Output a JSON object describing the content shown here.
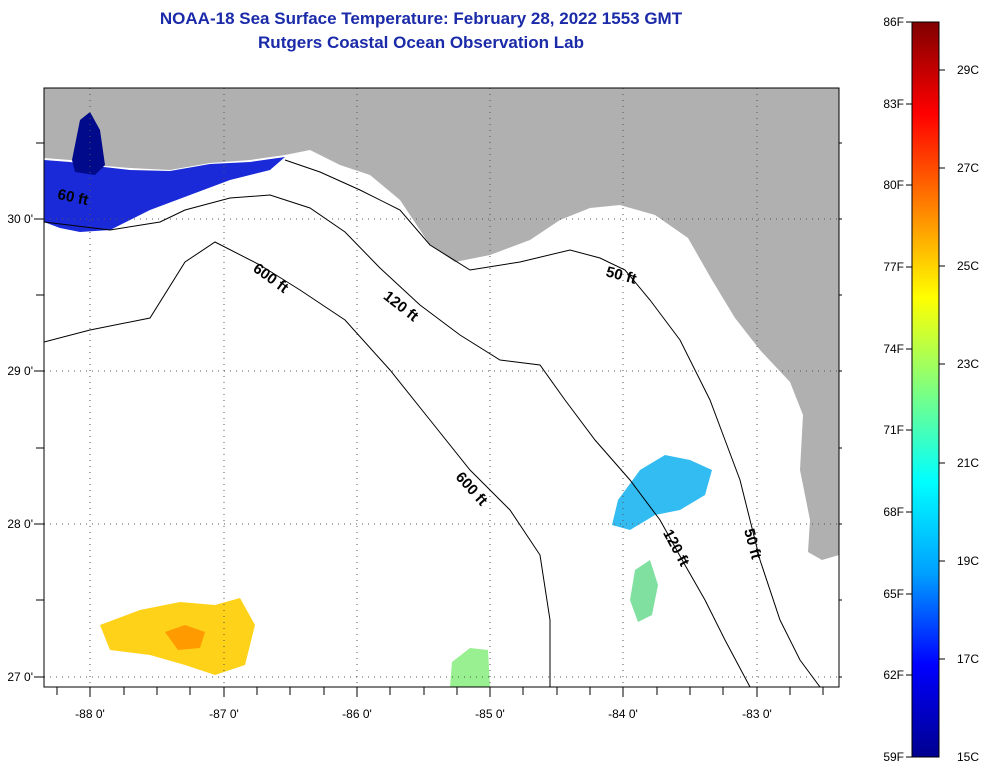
{
  "title_line1": "NOAA-18 Sea Surface Temperature:  February 28, 2022 1553 GMT",
  "title_line2": "Rutgers Coastal Ocean Observation Lab",
  "map": {
    "lon_ticks": [
      "-88 0'",
      "-87 0'",
      "-86 0'",
      "-85 0'",
      "-84 0'",
      "-83 0'"
    ],
    "lat_ticks": [
      "30 0'",
      "29 0'",
      "28 0'",
      "27 0'"
    ],
    "contours": {
      "c600a": "600 ft",
      "c600b": "600 ft",
      "c120a": "120 ft",
      "c120b": "120 ft",
      "c50a": "50 ft",
      "c50b": "50 ft",
      "c60w": "60 ft"
    },
    "colors": {
      "land": "#b0b0b0",
      "ocean": "#ffffff",
      "frame": "#000000"
    }
  },
  "colorbar": {
    "fahrenheit": [
      "86F",
      "83F",
      "80F",
      "77F",
      "74F",
      "71F",
      "68F",
      "65F",
      "62F",
      "59F"
    ],
    "celsius": [
      "29C",
      "27C",
      "25C",
      "23C",
      "21C",
      "19C",
      "17C",
      "15C"
    ],
    "gradient": [
      "#00008f",
      "#0000ff",
      "#00a0ff",
      "#00ffff",
      "#7fff7f",
      "#ffff00",
      "#ff8000",
      "#ff0000",
      "#800000"
    ]
  }
}
